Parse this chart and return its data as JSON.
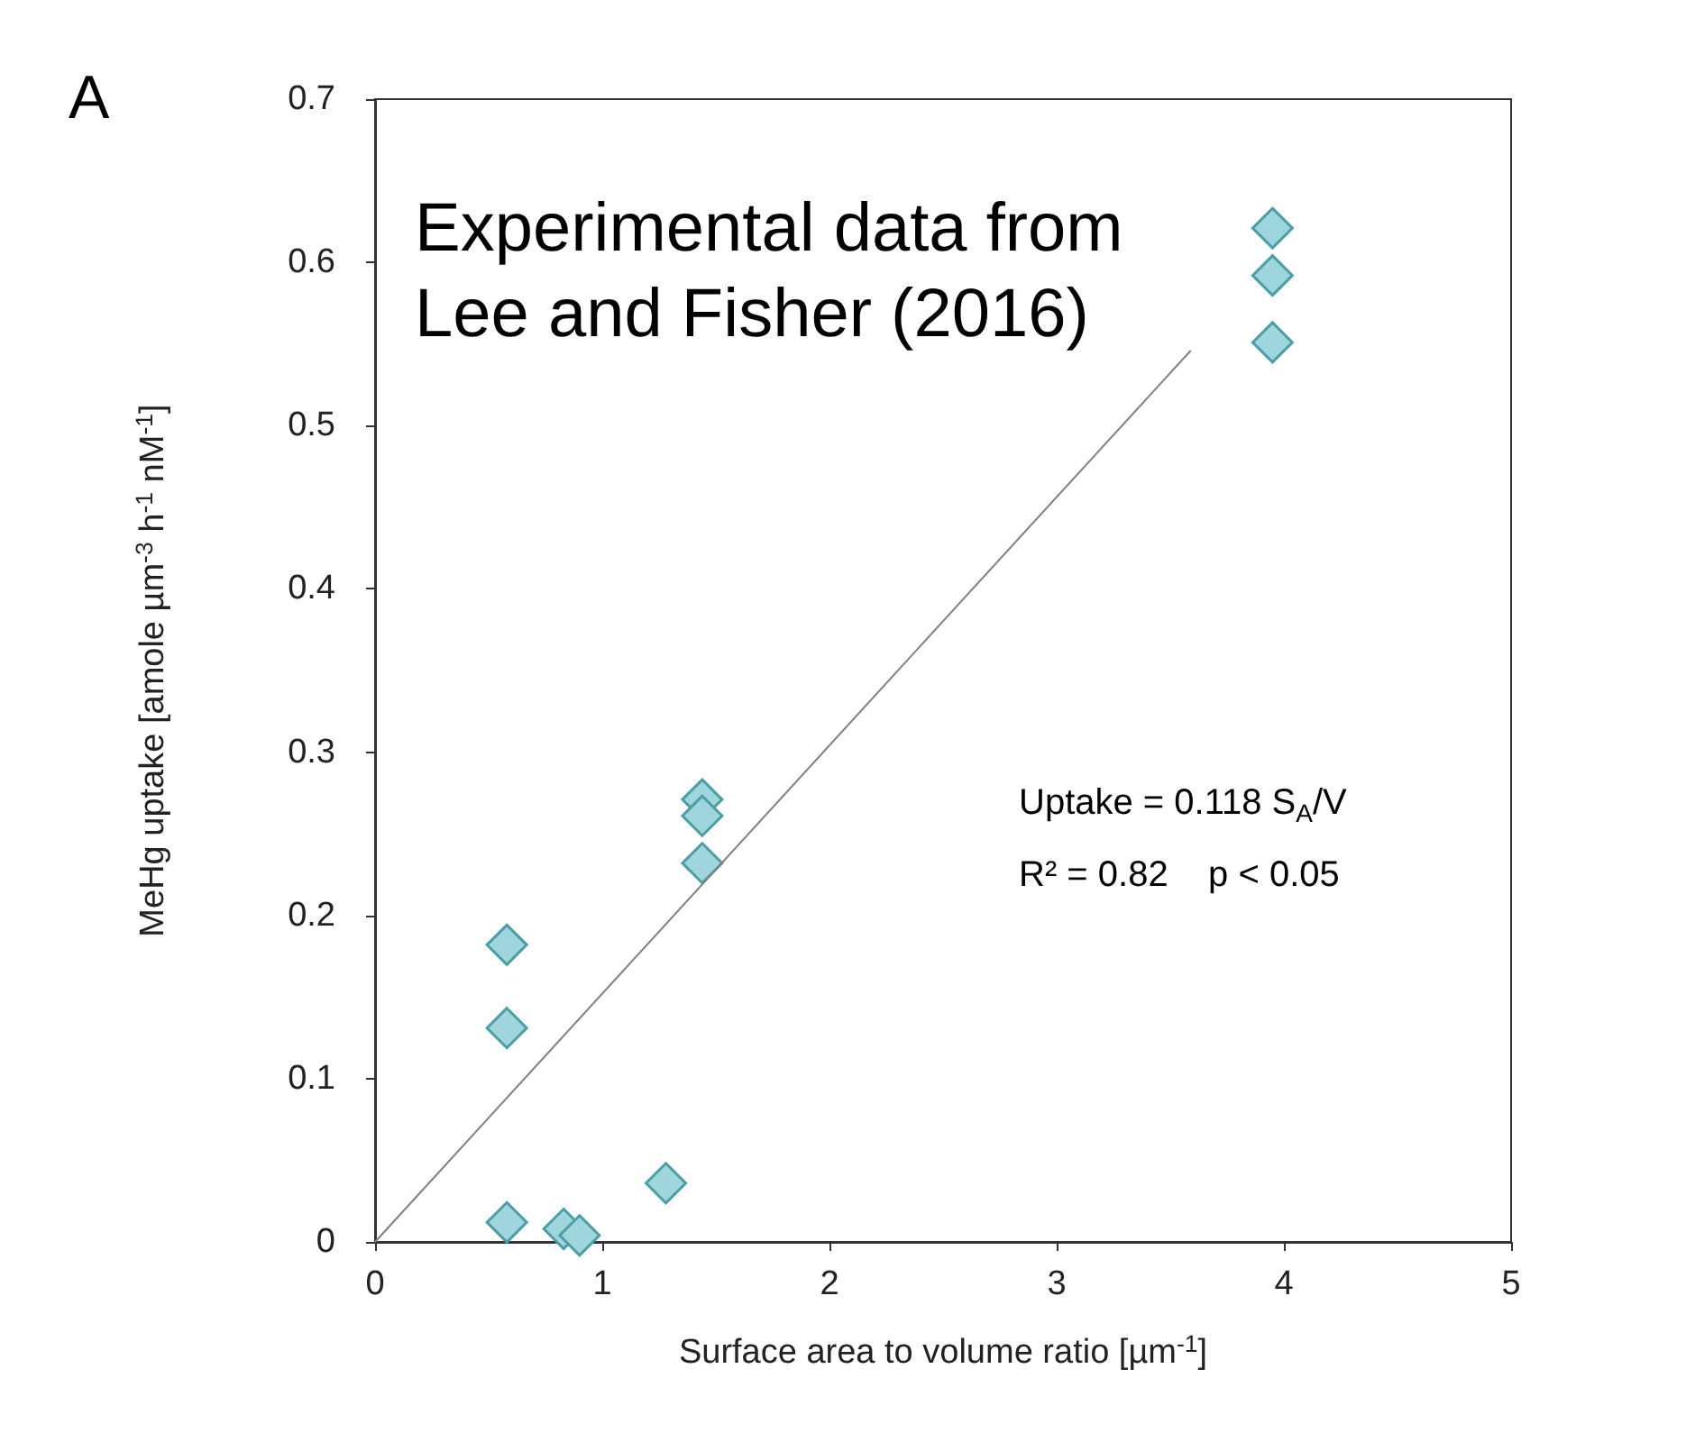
{
  "chart_data": {
    "type": "scatter",
    "xlabel": "Surface area to volume ratio [µm$^{-1}$]",
    "ylabel": "MeHg uptake [amole µm$^{-3}$ h$^{-1}$ nM$^{-1}$]",
    "xlim": [
      0,
      5
    ],
    "xticks": [
      0,
      1,
      2,
      3,
      4,
      5
    ],
    "ylim": [
      0,
      0.7
    ],
    "yticks": [
      0,
      0.1,
      0.2,
      0.3,
      0.4,
      0.5,
      0.6,
      0.7
    ],
    "grid": false,
    "marker": "diamond",
    "annotations": [
      "A",
      "Experimental data from Lee and Fisher (2016)",
      "Uptake = 0.118 S$_{A}$/V",
      "R² = 0.82    p < 0.05"
    ],
    "series": [
      {
        "color": "#9fd5dc",
        "x": [
          3.95,
          3.95,
          3.95,
          1.44,
          1.44,
          1.44,
          0.58,
          0.58,
          0.58,
          0.83,
          0.9,
          1.28
        ],
        "values": [
          0.621,
          0.592,
          0.551,
          0.271,
          0.261,
          0.232,
          0.182,
          0.131,
          0.012,
          0.008,
          0.004,
          0.036
        ]
      },
      {
        "type": "line",
        "color": "#808080",
        "marker": "none",
        "x": [
          0,
          3.59
        ],
        "values": [
          0,
          0.546
        ]
      }
    ]
  }
}
